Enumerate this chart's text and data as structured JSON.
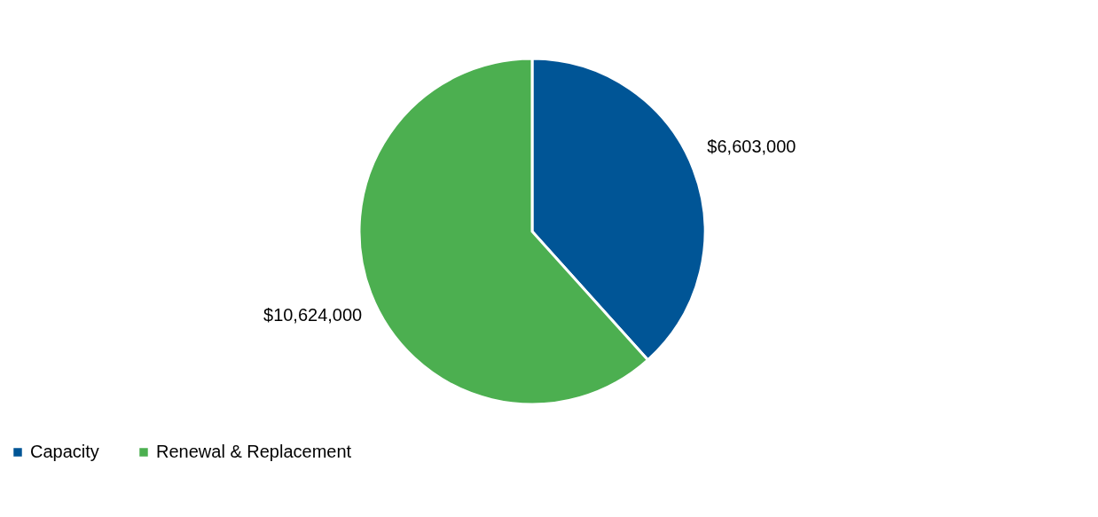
{
  "chart_data": {
    "type": "pie",
    "categories": [
      "Capacity",
      "Renewal & Replacement"
    ],
    "values": [
      6603000,
      10624000
    ],
    "colors": [
      "#005596",
      "#4caf50"
    ],
    "value_labels": [
      "$6,603,000",
      "$10,624,000"
    ],
    "legend": "bottom"
  }
}
